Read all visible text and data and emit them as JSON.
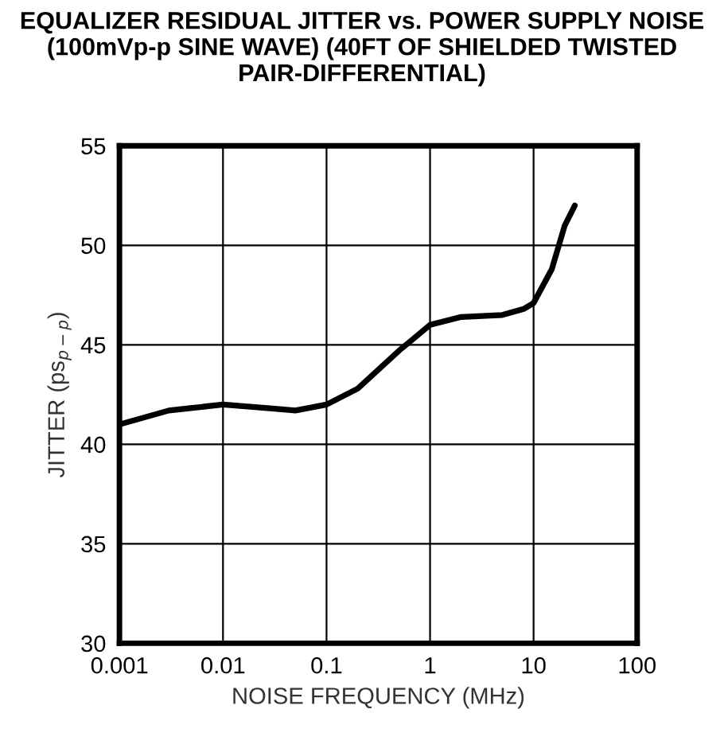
{
  "chart_data": {
    "type": "line",
    "title": "EQUALIZER RESIDUAL JITTER vs. POWER SUPPLY NOISE (100mVp-p SINE WAVE) (40FT OF SHIELDED TWISTED PAIR-DIFFERENTIAL)",
    "xlabel": "NOISE FREQUENCY (MHz)",
    "ylabel": "JITTER (ps$_{p−p}$)",
    "log": "x",
    "grid": true,
    "xlim": [
      0.001,
      100
    ],
    "xticks": [
      {
        "value": 0.001,
        "label": "0.001"
      },
      {
        "value": 0.01,
        "label": "0.01"
      },
      {
        "value": 0.1,
        "label": "0.1"
      },
      {
        "value": 1,
        "label": "1"
      },
      {
        "value": 10,
        "label": "10"
      },
      {
        "value": 100,
        "label": "100"
      }
    ],
    "ylim": [
      30,
      55
    ],
    "yticks": [
      30,
      35,
      40,
      45,
      50,
      55
    ],
    "series": [
      {
        "color": "#000000",
        "x": [
          0.001,
          0.003,
          0.01,
          0.03,
          0.05,
          0.1,
          0.2,
          0.5,
          1,
          2,
          5,
          8,
          10,
          15,
          20,
          25
        ],
        "values": [
          41.0,
          41.7,
          42.0,
          41.8,
          41.7,
          42.0,
          42.8,
          44.7,
          46.0,
          46.4,
          46.5,
          46.8,
          47.1,
          48.8,
          51.0,
          52.0
        ]
      }
    ]
  }
}
